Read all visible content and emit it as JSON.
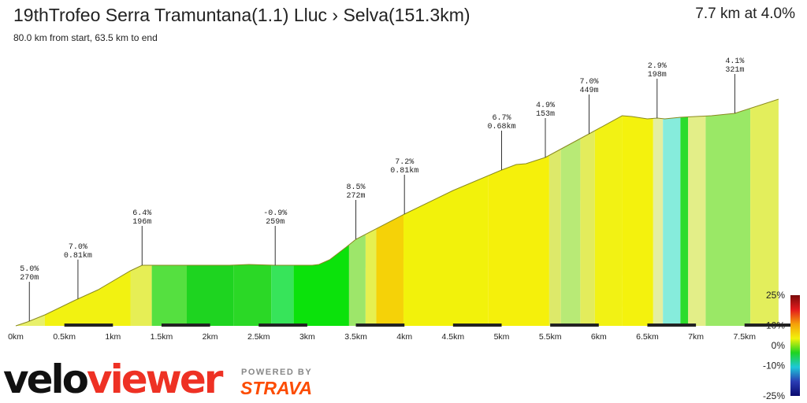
{
  "header": {
    "title": "19thTrofeo Serra Tramuntana(1.1) Lluc › Selva(151.3km)",
    "subtitle": "80.0 km from start, 63.5 km to end",
    "summary": "7.7 km at 4.0%"
  },
  "branding": {
    "logo_part1": "velo",
    "logo_part2": "viewer",
    "powered_by": "POWERED BY",
    "strava": "STRAVA"
  },
  "chart_data": {
    "type": "area",
    "title": "19thTrofeo Serra Tramuntana(1.1) Lluc › Selva(151.3km)",
    "xlabel": "",
    "ylabel": "",
    "xlim": [
      0,
      7.85
    ],
    "x_ticks": [
      "0km",
      "0.5km",
      "1km",
      "1.5km",
      "2km",
      "2.5km",
      "3km",
      "3.5km",
      "4km",
      "4.5km",
      "5km",
      "5.5km",
      "6km",
      "6.5km",
      "7km",
      "7.5km"
    ],
    "x_tick_values": [
      0,
      0.5,
      1,
      1.5,
      2,
      2.5,
      3,
      3.5,
      4,
      4.5,
      5,
      5.5,
      6,
      6.5,
      7,
      7.5
    ],
    "profile_km": [
      0,
      0.12,
      0.3,
      0.6,
      0.85,
      1.18,
      1.3,
      1.5,
      1.8,
      2.2,
      2.4,
      2.67,
      2.86,
      3.05,
      3.12,
      3.23,
      3.4,
      3.5,
      4.0,
      4.5,
      5.0,
      5.15,
      5.25,
      5.45,
      5.6,
      5.9,
      6.24,
      6.34,
      6.5,
      6.6,
      6.68,
      6.84,
      7.16,
      7.4,
      7.85
    ],
    "profile_elev_gain_m": [
      0,
      5,
      14,
      32,
      46,
      70,
      77,
      77,
      77,
      77,
      78,
      77,
      77,
      77,
      78,
      84,
      100,
      110,
      142,
      172,
      198,
      205,
      206,
      214,
      224,
      244,
      267,
      266,
      263,
      264,
      263,
      265,
      267,
      270,
      288
    ],
    "segments": [
      {
        "from_km": 0,
        "to_km": 0.3,
        "color": "#e8f06a"
      },
      {
        "from_km": 0.3,
        "to_km": 1.18,
        "color": "#f2f211"
      },
      {
        "from_km": 1.18,
        "to_km": 1.4,
        "color": "#e6ee55"
      },
      {
        "from_km": 1.4,
        "to_km": 1.76,
        "color": "#55e040"
      },
      {
        "from_km": 1.76,
        "to_km": 2.24,
        "color": "#1ed420"
      },
      {
        "from_km": 2.24,
        "to_km": 2.63,
        "color": "#2bd826"
      },
      {
        "from_km": 2.63,
        "to_km": 2.86,
        "color": "#37e45a"
      },
      {
        "from_km": 2.86,
        "to_km": 3.43,
        "color": "#0be20b"
      },
      {
        "from_km": 3.43,
        "to_km": 3.6,
        "color": "#9de66a"
      },
      {
        "from_km": 3.6,
        "to_km": 3.71,
        "color": "#e6f050"
      },
      {
        "from_km": 3.71,
        "to_km": 3.99,
        "color": "#f5d208"
      },
      {
        "from_km": 3.99,
        "to_km": 4.86,
        "color": "#f2f20b"
      },
      {
        "from_km": 4.86,
        "to_km": 5.49,
        "color": "#f5f00b"
      },
      {
        "from_km": 5.49,
        "to_km": 5.61,
        "color": "#dde96a"
      },
      {
        "from_km": 5.61,
        "to_km": 5.81,
        "color": "#b8ea76"
      },
      {
        "from_km": 5.81,
        "to_km": 5.96,
        "color": "#e3ec5c"
      },
      {
        "from_km": 5.96,
        "to_km": 6.24,
        "color": "#f2f214"
      },
      {
        "from_km": 6.24,
        "to_km": 6.56,
        "color": "#f4f20d"
      },
      {
        "from_km": 6.56,
        "to_km": 6.66,
        "color": "#e4eea0"
      },
      {
        "from_km": 6.66,
        "to_km": 6.84,
        "color": "#86ecdc"
      },
      {
        "from_km": 6.84,
        "to_km": 6.92,
        "color": "#2cdc2c"
      },
      {
        "from_km": 6.92,
        "to_km": 7.1,
        "color": "#e3ee88"
      },
      {
        "from_km": 7.1,
        "to_km": 7.56,
        "color": "#9ae866"
      },
      {
        "from_km": 7.56,
        "to_km": 7.85,
        "color": "#e3ee5c"
      }
    ],
    "annotations": [
      {
        "km": 0.14,
        "grade": "5.0%",
        "length": "270m"
      },
      {
        "km": 0.64,
        "grade": "7.0%",
        "length": "0.81km"
      },
      {
        "km": 1.3,
        "grade": "6.4%",
        "length": "196m"
      },
      {
        "km": 2.67,
        "grade": "-0.9%",
        "length": "259m"
      },
      {
        "km": 3.5,
        "grade": "8.5%",
        "length": "272m"
      },
      {
        "km": 4.0,
        "grade": "7.2%",
        "length": "0.81km"
      },
      {
        "km": 5.0,
        "grade": "6.7%",
        "length": "0.68km"
      },
      {
        "km": 5.45,
        "grade": "4.9%",
        "length": "153m"
      },
      {
        "km": 5.9,
        "grade": "7.0%",
        "length": "449m"
      },
      {
        "km": 6.6,
        "grade": "2.9%",
        "length": "198m"
      },
      {
        "km": 7.4,
        "grade": "4.1%",
        "length": "321m"
      }
    ],
    "gradient_scale": {
      "labels": [
        "25%",
        "10%",
        "0%",
        "-10%",
        "-25%"
      ],
      "values": [
        25,
        10,
        0,
        -10,
        -25
      ],
      "colors": [
        "#7a0b0b",
        "#e31a1c",
        "#f5a00a",
        "#f2f20b",
        "#1ed420",
        "#1ec8d8",
        "#2a3cb4",
        "#0a0a6e"
      ]
    },
    "grid": false,
    "legend": "none"
  }
}
